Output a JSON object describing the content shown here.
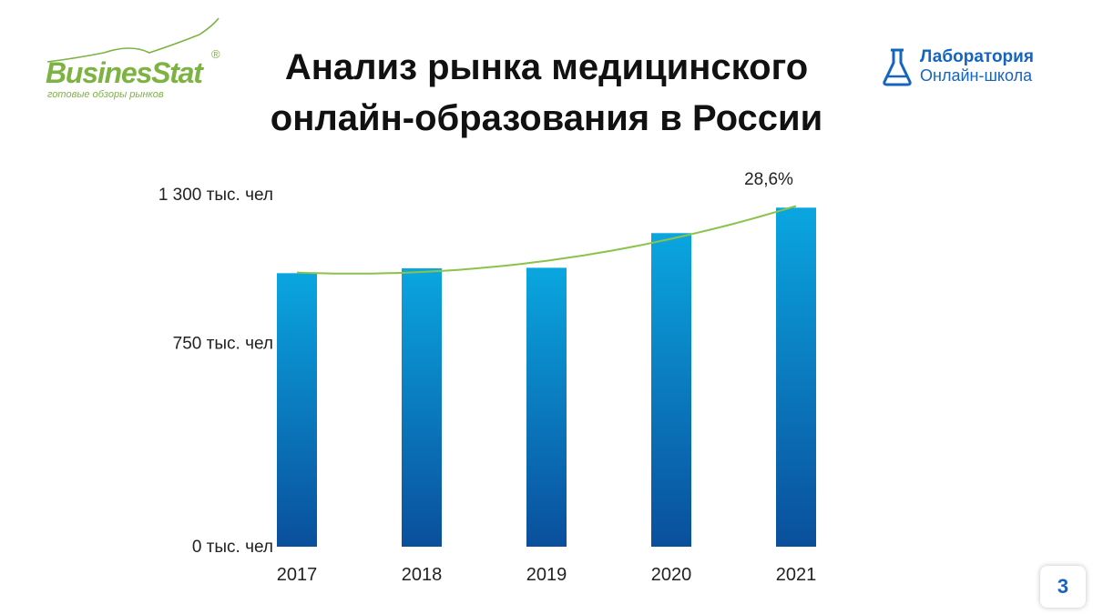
{
  "brand_left": {
    "name": "BusinesStat",
    "registered": "®",
    "tagline": "готовые обзоры рынков"
  },
  "title": {
    "line1": "Анализ рынка медицинского",
    "line2": "онлайн-образования в России"
  },
  "brand_right": {
    "line1": "Лаборатория",
    "line2": "Онлайн-школа",
    "icon": "flask-icon"
  },
  "page_number": "3",
  "colors": {
    "bar_top": "#0aa6e0",
    "bar_bottom": "#0a4f9c",
    "trend": "#8bc34a",
    "brand_green": "#7cb342",
    "brand_blue": "#1565c0"
  },
  "chart_data": {
    "type": "bar",
    "title": "",
    "xlabel": "",
    "ylabel": "",
    "categories": [
      "2017",
      "2018",
      "2019",
      "2020",
      "2021"
    ],
    "series": [
      {
        "values": [
          1010,
          1028,
          1030,
          1158,
          1252
        ]
      }
    ],
    "ylim": [
      0,
      1300
    ],
    "yticks": [
      {
        "value": 0,
        "label": "0 тыс. чел"
      },
      {
        "value": 750,
        "label": "750 тыс. чел"
      },
      {
        "value": 1300,
        "label": "1 300 тыс. чел"
      }
    ],
    "trendline": {
      "type": "polynomial",
      "color": "#8bc34a"
    },
    "annotations": [
      {
        "category": "2021",
        "text": "28,6%"
      }
    ],
    "grid": false,
    "legend": "none"
  }
}
